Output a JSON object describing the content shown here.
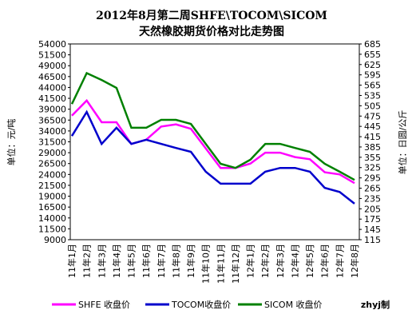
{
  "chart_data": {
    "type": "line",
    "title": "2012年8月第二周SHFE\\TOCOM\\SICOM",
    "subtitle": "天然橡胶期货价格对比走势图",
    "y_label": "单位：元/吨",
    "y2_label": "单位：日圆/公斤",
    "credit": "zhyj制",
    "categories": [
      "11年1月",
      "11年2月",
      "11年3月",
      "11年4月",
      "11年5月",
      "11年6月",
      "11年7月",
      "11年8月",
      "11年9月",
      "11年10月",
      "11年11月",
      "11年12月",
      "12年1月",
      "12年2月",
      "12年3月",
      "12年4月",
      "12年5月",
      "12年6月",
      "12年7月",
      "12年8月"
    ],
    "ylim": [
      9000,
      54000
    ],
    "yticks": [
      9000,
      11500,
      14000,
      16500,
      19000,
      21500,
      24000,
      26500,
      29000,
      31500,
      34000,
      36500,
      39000,
      41500,
      44000,
      46500,
      49000,
      51500,
      54000
    ],
    "y2lim": [
      115,
      685
    ],
    "y2ticks": [
      115,
      145,
      175,
      205,
      235,
      265,
      295,
      325,
      355,
      385,
      415,
      445,
      475,
      505,
      535,
      565,
      595,
      625,
      655,
      685
    ],
    "grid": false,
    "legend": "bottom",
    "series": [
      {
        "name": "SHFE 收盘价",
        "color": "#ff00ff",
        "axis": "y",
        "values": [
          37500,
          41000,
          36000,
          36000,
          31000,
          32000,
          35000,
          35500,
          34500,
          30000,
          25500,
          25500,
          26500,
          29000,
          29000,
          28000,
          27500,
          24500,
          24000,
          22000
        ]
      },
      {
        "name": "TOCOM收盘价",
        "color": "#0000cc",
        "axis": "y2",
        "values": [
          417,
          487,
          394,
          441,
          394,
          406,
          394,
          382,
          371,
          313,
          278,
          278,
          278,
          313,
          324,
          324,
          313,
          266,
          254,
          220
        ]
      },
      {
        "name": "SICOM 收盘价",
        "color": "#008000",
        "axis": "y2",
        "values": [
          510,
          600,
          580,
          557,
          441,
          441,
          464,
          464,
          452,
          394,
          336,
          324,
          348,
          394,
          394,
          382,
          371,
          336,
          313,
          289
        ]
      }
    ]
  }
}
